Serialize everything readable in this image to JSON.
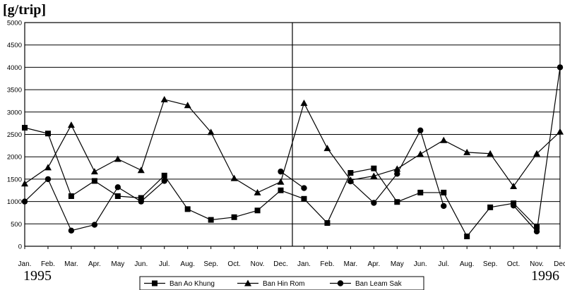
{
  "chart_data": {
    "type": "line",
    "ylabel": "[g/trip]",
    "ylim": [
      0,
      5000
    ],
    "y_ticks": [
      "0",
      "500",
      "1000",
      "1500",
      "2000",
      "2500",
      "3000",
      "3500",
      "4000",
      "4500",
      "5000"
    ],
    "categories": [
      "Jan.",
      "Feb.",
      "Mar.",
      "Apr.",
      "May",
      "Jun.",
      "Jul.",
      "Aug.",
      "Sep.",
      "Oct.",
      "Nov.",
      "Dec.",
      "Jan.",
      "Feb.",
      "Mar.",
      "Apr.",
      "May",
      "Jun.",
      "Jul.",
      "Aug.",
      "Sep.",
      "Oct.",
      "Nov.",
      "Dec"
    ],
    "years": [
      "1995",
      "1996"
    ],
    "grid": true,
    "legend_position": "bottom",
    "series": [
      {
        "name": "Ban Ao Khung",
        "marker": "square",
        "values": [
          2650,
          2520,
          1120,
          1460,
          1120,
          1080,
          1580,
          830,
          590,
          650,
          800,
          1250,
          1060,
          520,
          1640,
          1740,
          990,
          1200,
          1200,
          220,
          870,
          960,
          430,
          null
        ]
      },
      {
        "name": "Ban Hin Rom",
        "marker": "triangle",
        "values": [
          1400,
          1760,
          2710,
          1670,
          1950,
          1700,
          3280,
          3150,
          2550,
          1520,
          1200,
          1440,
          3200,
          2190,
          1480,
          1570,
          1730,
          2060,
          2370,
          2100,
          2070,
          1340,
          2070,
          2560
        ]
      },
      {
        "name": "Ban Leam Sak",
        "marker": "circle",
        "values": [
          1000,
          1500,
          350,
          480,
          1320,
          1000,
          1460,
          null,
          null,
          null,
          null,
          1670,
          1300,
          null,
          1450,
          970,
          1620,
          2590,
          900,
          null,
          null,
          910,
          330,
          4000
        ]
      }
    ]
  }
}
